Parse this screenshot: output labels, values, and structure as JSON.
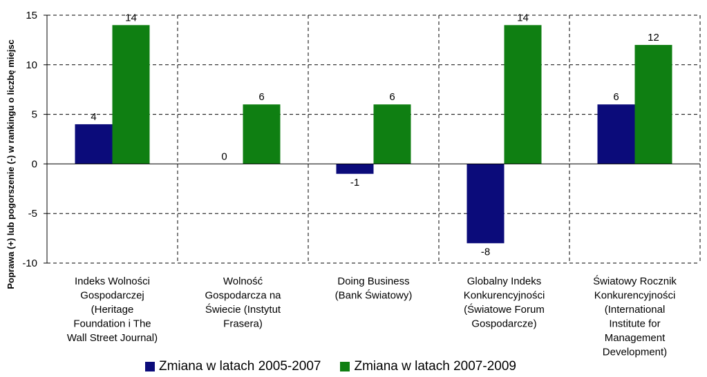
{
  "chart_data": {
    "type": "bar",
    "categories": [
      [
        "Indeks Wolności",
        "Gospodarczej",
        "(Heritage",
        "Foundation i The",
        "Wall Street Journal)"
      ],
      [
        "Wolność",
        "Gospodarcza na",
        "Świecie (Instytut",
        "Frasera)"
      ],
      [
        "Doing Business",
        "(Bank Światowy)"
      ],
      [
        "Globalny Indeks",
        "Konkurencyjności",
        "(Światowe Forum",
        "Gospodarcze)"
      ],
      [
        "Światowy Rocznik",
        "Konkurencyjności",
        "(International",
        "Institute for",
        "Management",
        "Development)"
      ]
    ],
    "series": [
      {
        "name": "Zmiana w latach 2005-2007",
        "color": "#0b0b7a",
        "values": [
          4,
          0,
          -1,
          -8,
          6
        ]
      },
      {
        "name": "Zmiana w latach 2007-2009",
        "color": "#0f7f12",
        "values": [
          14,
          6,
          6,
          14,
          12
        ]
      }
    ],
    "ylabel": "Poprawa (+) lub pogorszenie (-) w rankingu o liczbę miejsc",
    "ylim": [
      -10,
      15
    ],
    "yticks": [
      -10,
      -5,
      0,
      5,
      10,
      15
    ],
    "grid": true,
    "legend": "bottom"
  }
}
